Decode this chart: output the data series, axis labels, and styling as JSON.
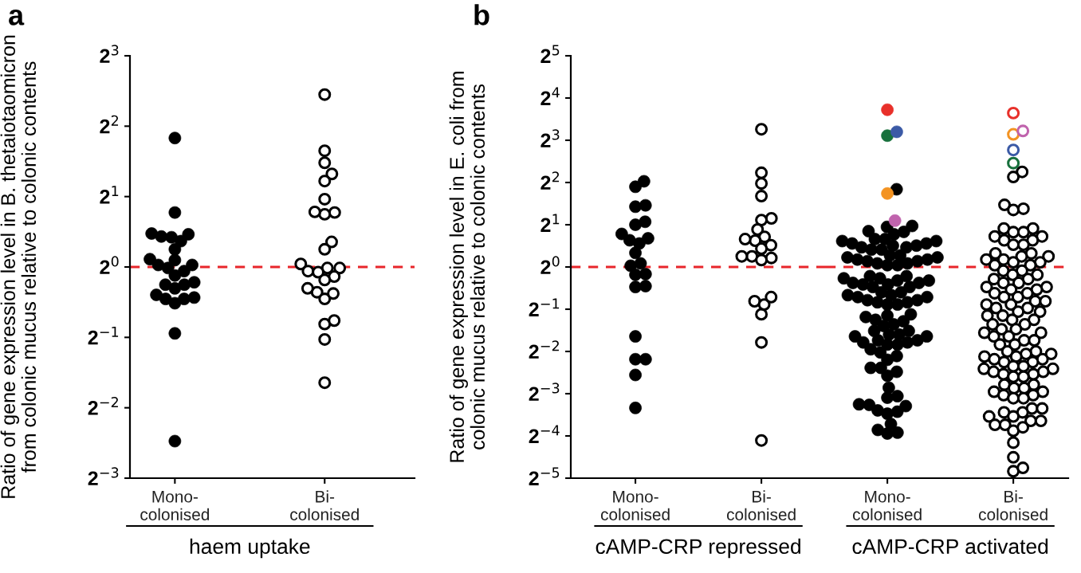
{
  "chart_data": [
    {
      "type": "scatter",
      "title": "a",
      "ylabel": "Ratio of gene expression level in B. thetaiotaomicron\nfrom colonic mucus relative to colonic contents",
      "categories": [
        "Mono-\ncolonised",
        "Bi-\ncolonised"
      ],
      "log": "y",
      "ylim": [
        0.125,
        8
      ],
      "yticks": [
        {
          "value": 0.125,
          "label": "2$^{−3}$"
        },
        {
          "value": 0.25,
          "label": "2$^{−2}$"
        },
        {
          "value": 0.5,
          "label": "2$^{−1}$"
        },
        {
          "value": 1,
          "label": "2$^{0}$"
        },
        {
          "value": 2,
          "label": "2$^{1}$"
        },
        {
          "value": 4,
          "label": "2$^{2}$"
        },
        {
          "value": 8,
          "label": "2$^{3}$"
        }
      ],
      "ref_lines": [
        {
          "axis": "y",
          "value": 1,
          "color": "#e8262b",
          "line_style": "dashed"
        }
      ],
      "annotations": [
        "haem uptake"
      ],
      "series": [
        {
          "color": "#000000",
          "marker": "circle",
          "x": [
            "Mono-\ncolonised",
            "Mono-\ncolonised",
            "Mono-\ncolonised",
            "Mono-\ncolonised",
            "Mono-\ncolonised",
            "Mono-\ncolonised",
            "Mono-\ncolonised",
            "Mono-\ncolonised",
            "Mono-\ncolonised",
            "Mono-\ncolonised",
            "Mono-\ncolonised",
            "Mono-\ncolonised",
            "Mono-\ncolonised",
            "Mono-\ncolonised",
            "Mono-\ncolonised",
            "Mono-\ncolonised",
            "Mono-\ncolonised",
            "Mono-\ncolonised",
            "Mono-\ncolonised",
            "Mono-\ncolonised",
            "Mono-\ncolonised",
            "Mono-\ncolonised",
            "Mono-\ncolonised",
            "Mono-\ncolonised",
            "Mono-\ncolonised",
            "Mono-\ncolonised"
          ],
          "values": [
            3.56,
            1.71,
            1.38,
            1.34,
            1.29,
            1.35,
            1.39,
            1.19,
            1.08,
            1.07,
            1.02,
            1.02,
            0.99,
            0.96,
            0.92,
            0.84,
            0.84,
            0.86,
            0.81,
            0.76,
            0.73,
            0.7,
            0.73,
            0.74,
            0.52,
            0.18
          ]
        },
        {
          "color": "#000000",
          "marker": "circle-open",
          "x": [
            "Bi-\ncolonised",
            "Bi-\ncolonised",
            "Bi-\ncolonised",
            "Bi-\ncolonised",
            "Bi-\ncolonised",
            "Bi-\ncolonised",
            "Bi-\ncolonised",
            "Bi-\ncolonised",
            "Bi-\ncolonised",
            "Bi-\ncolonised",
            "Bi-\ncolonised",
            "Bi-\ncolonised",
            "Bi-\ncolonised",
            "Bi-\ncolonised",
            "Bi-\ncolonised",
            "Bi-\ncolonised",
            "Bi-\ncolonised",
            "Bi-\ncolonised",
            "Bi-\ncolonised",
            "Bi-\ncolonised",
            "Bi-\ncolonised",
            "Bi-\ncolonised",
            "Bi-\ncolonised",
            "Bi-\ncolonised",
            "Bi-\ncolonised",
            "Bi-\ncolonised"
          ],
          "values": [
            5.46,
            3.14,
            2.79,
            2.5,
            2.33,
            1.95,
            1.71,
            1.68,
            1.72,
            1.28,
            1.19,
            0.99,
            1.03,
            0.96,
            0.99,
            0.95,
            0.91,
            0.88,
            0.78,
            0.73,
            0.77,
            0.81,
            0.57,
            0.59,
            0.49,
            0.32
          ]
        }
      ]
    },
    {
      "type": "scatter",
      "title": "b",
      "ylabel": "Ratio of gene expression level in E. coli from\ncolonic mucus relative to colonic contents",
      "categories": [
        "Mono-\ncolonised",
        "Bi-\ncolonised"
      ],
      "log": "y",
      "ylim": [
        0.03125,
        32
      ],
      "yticks": [
        {
          "value": 0.03125,
          "label": "2$^{−5}$"
        },
        {
          "value": 0.0625,
          "label": "2$^{−4}$"
        },
        {
          "value": 0.125,
          "label": "2$^{−3}$"
        },
        {
          "value": 0.25,
          "label": "2$^{−2}$"
        },
        {
          "value": 0.5,
          "label": "2$^{−1}$"
        },
        {
          "value": 1,
          "label": "2$^{0}$"
        },
        {
          "value": 2,
          "label": "2$^{1}$"
        },
        {
          "value": 4,
          "label": "2$^{2}$"
        },
        {
          "value": 8,
          "label": "2$^{3}$"
        },
        {
          "value": 16,
          "label": "2$^{4}$"
        },
        {
          "value": 32,
          "label": "2$^{5}$"
        }
      ],
      "ref_lines": [
        {
          "axis": "y",
          "value": 1,
          "color": "#e8262b",
          "line_style": "dashed"
        }
      ],
      "annotations": [
        "cAMP-CRP repressed"
      ],
      "series": [
        {
          "color": "#000000",
          "marker": "circle",
          "x": [
            "Mono-\ncolonised",
            "Mono-\ncolonised",
            "Mono-\ncolonised",
            "Mono-\ncolonised",
            "Mono-\ncolonised",
            "Mono-\ncolonised",
            "Mono-\ncolonised",
            "Mono-\ncolonised",
            "Mono-\ncolonised",
            "Mono-\ncolonised",
            "Mono-\ncolonised",
            "Mono-\ncolonised",
            "Mono-\ncolonised",
            "Mono-\ncolonised",
            "Mono-\ncolonised",
            "Mono-\ncolonised",
            "Mono-\ncolonised",
            "Mono-\ncolonised",
            "Mono-\ncolonised",
            "Mono-\ncolonised",
            "Mono-\ncolonised",
            "Mono-\ncolonised"
          ],
          "values": [
            4.08,
            3.73,
            2.75,
            2.69,
            2.1,
            2.0,
            1.72,
            1.55,
            1.47,
            1.6,
            1.26,
            1.02,
            1.06,
            0.89,
            0.88,
            0.73,
            0.72,
            0.32,
            0.22,
            0.22,
            0.17,
            0.099
          ]
        },
        {
          "color": "#000000",
          "marker": "circle-open",
          "x": [
            "Bi-\ncolonised",
            "Bi-\ncolonised",
            "Bi-\ncolonised",
            "Bi-\ncolonised",
            "Bi-\ncolonised",
            "Bi-\ncolonised",
            "Bi-\ncolonised",
            "Bi-\ncolonised",
            "Bi-\ncolonised",
            "Bi-\ncolonised",
            "Bi-\ncolonised",
            "Bi-\ncolonised",
            "Bi-\ncolonised",
            "Bi-\ncolonised",
            "Bi-\ncolonised",
            "Bi-\ncolonised",
            "Bi-\ncolonised",
            "Bi-\ncolonised",
            "Bi-\ncolonised",
            "Bi-\ncolonised",
            "Bi-\ncolonised",
            "Bi-\ncolonised"
          ],
          "values": [
            9.58,
            4.69,
            3.94,
            3.2,
            2.22,
            2.16,
            1.85,
            1.64,
            1.43,
            1.54,
            1.58,
            1.35,
            1.19,
            1.16,
            1.12,
            1.19,
            0.57,
            0.46,
            0.54,
            0.61,
            0.29,
            0.058
          ]
        }
      ]
    },
    {
      "type": "scatter",
      "categories": [
        "Mono-\ncolonised",
        "Bi-\ncolonised"
      ],
      "tick_labels": "x",
      "log": "y",
      "ylim": [
        0.03125,
        32
      ],
      "yticks": [
        {
          "value": 0.03125,
          "label": null
        },
        {
          "value": 0.0625,
          "label": null
        },
        {
          "value": 0.125,
          "label": null
        },
        {
          "value": 0.25,
          "label": null
        },
        {
          "value": 0.5,
          "label": null
        },
        {
          "value": 1,
          "label": null
        },
        {
          "value": 2,
          "label": null
        },
        {
          "value": 4,
          "label": null
        },
        {
          "value": 8,
          "label": null
        },
        {
          "value": 16,
          "label": null
        },
        {
          "value": 32,
          "label": null
        }
      ],
      "ref_lines": [
        {
          "axis": "y",
          "value": 1,
          "color": "#e8262b",
          "line_style": "dashed"
        }
      ],
      "annotations": [
        "cAMP-CRP activated"
      ],
      "series": [
        {
          "color": "#000000",
          "marker": "circle",
          "x": [
            "Mono-\ncolonised",
            "Mono-\ncolonised",
            "Mono-\ncolonised",
            "Mono-\ncolonised",
            "Mono-\ncolonised",
            "Mono-\ncolonised",
            "Mono-\ncolonised",
            "Mono-\ncolonised",
            "Mono-\ncolonised",
            "Mono-\ncolonised",
            "Mono-\ncolonised",
            "Mono-\ncolonised",
            "Mono-\ncolonised",
            "Mono-\ncolonised",
            "Mono-\ncolonised",
            "Mono-\ncolonised",
            "Mono-\ncolonised",
            "Mono-\ncolonised",
            "Mono-\ncolonised",
            "Mono-\ncolonised",
            "Mono-\ncolonised",
            "Mono-\ncolonised",
            "Mono-\ncolonised",
            "Mono-\ncolonised",
            "Mono-\ncolonised",
            "Mono-\ncolonised",
            "Mono-\ncolonised",
            "Mono-\ncolonised",
            "Mono-\ncolonised",
            "Mono-\ncolonised",
            "Mono-\ncolonised",
            "Mono-\ncolonised",
            "Mono-\ncolonised",
            "Mono-\ncolonised",
            "Mono-\ncolonised",
            "Mono-\ncolonised",
            "Mono-\ncolonised",
            "Mono-\ncolonised",
            "Mono-\ncolonised",
            "Mono-\ncolonised",
            "Mono-\ncolonised",
            "Mono-\ncolonised",
            "Mono-\ncolonised",
            "Mono-\ncolonised",
            "Mono-\ncolonised",
            "Mono-\ncolonised",
            "Mono-\ncolonised",
            "Mono-\ncolonised",
            "Mono-\ncolonised",
            "Mono-\ncolonised",
            "Mono-\ncolonised",
            "Mono-\ncolonised",
            "Mono-\ncolonised",
            "Mono-\ncolonised",
            "Mono-\ncolonised",
            "Mono-\ncolonised",
            "Mono-\ncolonised",
            "Mono-\ncolonised",
            "Mono-\ncolonised",
            "Mono-\ncolonised",
            "Mono-\ncolonised",
            "Mono-\ncolonised",
            "Mono-\ncolonised",
            "Mono-\ncolonised",
            "Mono-\ncolonised",
            "Mono-\ncolonised",
            "Mono-\ncolonised",
            "Mono-\ncolonised",
            "Mono-\ncolonised",
            "Mono-\ncolonised",
            "Mono-\ncolonised",
            "Mono-\ncolonised",
            "Mono-\ncolonised",
            "Mono-\ncolonised",
            "Mono-\ncolonised",
            "Mono-\ncolonised",
            "Mono-\ncolonised",
            "Mono-\ncolonised",
            "Mono-\ncolonised",
            "Mono-\ncolonised",
            "Mono-\ncolonised",
            "Mono-\ncolonised",
            "Mono-\ncolonised",
            "Mono-\ncolonised",
            "Mono-\ncolonised",
            "Mono-\ncolonised",
            "Mono-\ncolonised",
            "Mono-\ncolonised",
            "Mono-\ncolonised",
            "Mono-\ncolonised",
            "Mono-\ncolonised",
            "Mono-\ncolonised",
            "Mono-\ncolonised",
            "Mono-\ncolonised"
          ],
          "values": [
            3.58,
            1.96,
            1.8,
            1.71,
            1.78,
            1.93,
            1.58,
            1.58,
            1.53,
            1.53,
            1.47,
            1.47,
            1.42,
            1.42,
            1.38,
            1.38,
            1.33,
            1.33,
            1.21,
            1.21,
            1.17,
            1.17,
            1.13,
            1.13,
            1.1,
            1.1,
            1.06,
            1.06,
            1.03,
            1.03,
            0.86,
            0.86,
            0.83,
            0.83,
            0.8,
            0.8,
            0.77,
            0.77,
            0.75,
            0.75,
            0.72,
            0.72,
            0.66,
            0.66,
            0.63,
            0.63,
            0.61,
            0.61,
            0.58,
            0.58,
            0.56,
            0.56,
            0.54,
            0.54,
            0.45,
            0.44,
            0.41,
            0.38,
            0.39,
            0.42,
            0.46,
            0.35,
            0.35,
            0.33,
            0.33,
            0.32,
            0.32,
            0.3,
            0.3,
            0.29,
            0.29,
            0.28,
            0.28,
            0.259,
            0.232,
            0.179,
            0.191,
            0.191,
            0.168,
            0.218,
            0.246,
            0.138,
            0.12,
            0.117,
            0.105,
            0.102,
            0.093,
            0.09,
            0.095,
            0.104,
            0.069,
            0.065,
            0.066,
            0.076
          ]
        },
        {
          "marker": "circle",
          "colors": [
            "#e8302a",
            "#17703c",
            "#3b5aa6",
            "#f39322",
            "#c063ad"
          ],
          "x": [
            "Mono-\ncolonised",
            "Mono-\ncolonised",
            "Mono-\ncolonised",
            "Mono-\ncolonised",
            "Mono-\ncolonised"
          ],
          "values": [
            13.2,
            8.63,
            9.19,
            3.34,
            2.14
          ]
        },
        {
          "color": "#000000",
          "marker": "circle-open",
          "x": [
            "Bi-\ncolonised",
            "Bi-\ncolonised",
            "Bi-\ncolonised",
            "Bi-\ncolonised",
            "Bi-\ncolonised",
            "Bi-\ncolonised",
            "Bi-\ncolonised",
            "Bi-\ncolonised",
            "Bi-\ncolonised",
            "Bi-\ncolonised",
            "Bi-\ncolonised",
            "Bi-\ncolonised",
            "Bi-\ncolonised",
            "Bi-\ncolonised",
            "Bi-\ncolonised",
            "Bi-\ncolonised",
            "Bi-\ncolonised",
            "Bi-\ncolonised",
            "Bi-\ncolonised",
            "Bi-\ncolonised",
            "Bi-\ncolonised",
            "Bi-\ncolonised",
            "Bi-\ncolonised",
            "Bi-\ncolonised",
            "Bi-\ncolonised",
            "Bi-\ncolonised",
            "Bi-\ncolonised",
            "Bi-\ncolonised",
            "Bi-\ncolonised",
            "Bi-\ncolonised",
            "Bi-\ncolonised",
            "Bi-\ncolonised",
            "Bi-\ncolonised",
            "Bi-\ncolonised",
            "Bi-\ncolonised",
            "Bi-\ncolonised",
            "Bi-\ncolonised",
            "Bi-\ncolonised",
            "Bi-\ncolonised",
            "Bi-\ncolonised",
            "Bi-\ncolonised",
            "Bi-\ncolonised",
            "Bi-\ncolonised",
            "Bi-\ncolonised",
            "Bi-\ncolonised",
            "Bi-\ncolonised",
            "Bi-\ncolonised",
            "Bi-\ncolonised",
            "Bi-\ncolonised",
            "Bi-\ncolonised",
            "Bi-\ncolonised",
            "Bi-\ncolonised",
            "Bi-\ncolonised",
            "Bi-\ncolonised",
            "Bi-\ncolonised",
            "Bi-\ncolonised",
            "Bi-\ncolonised",
            "Bi-\ncolonised",
            "Bi-\ncolonised",
            "Bi-\ncolonised",
            "Bi-\ncolonised",
            "Bi-\ncolonised",
            "Bi-\ncolonised",
            "Bi-\ncolonised",
            "Bi-\ncolonised",
            "Bi-\ncolonised",
            "Bi-\ncolonised",
            "Bi-\ncolonised",
            "Bi-\ncolonised",
            "Bi-\ncolonised",
            "Bi-\ncolonised",
            "Bi-\ncolonised",
            "Bi-\ncolonised",
            "Bi-\ncolonised",
            "Bi-\ncolonised",
            "Bi-\ncolonised",
            "Bi-\ncolonised",
            "Bi-\ncolonised",
            "Bi-\ncolonised",
            "Bi-\ncolonised",
            "Bi-\ncolonised",
            "Bi-\ncolonised",
            "Bi-\ncolonised",
            "Bi-\ncolonised",
            "Bi-\ncolonised",
            "Bi-\ncolonised",
            "Bi-\ncolonised",
            "Bi-\ncolonised",
            "Bi-\ncolonised",
            "Bi-\ncolonised",
            "Bi-\ncolonised",
            "Bi-\ncolonised",
            "Bi-\ncolonised",
            "Bi-\ncolonised",
            "Bi-\ncolonised",
            "Bi-\ncolonised",
            "Bi-\ncolonised",
            "Bi-\ncolonised",
            "Bi-\ncolonised",
            "Bi-\ncolonised",
            "Bi-\ncolonised",
            "Bi-\ncolonised",
            "Bi-\ncolonised",
            "Bi-\ncolonised",
            "Bi-\ncolonised",
            "Bi-\ncolonised",
            "Bi-\ncolonised",
            "Bi-\ncolonised",
            "Bi-\ncolonised",
            "Bi-\ncolonised",
            "Bi-\ncolonised"
          ],
          "values": [
            4.76,
            4.38,
            2.77,
            2.55,
            2.6,
            1.88,
            1.88,
            1.77,
            1.77,
            1.65,
            1.65,
            1.55,
            1.55,
            1.44,
            1.44,
            1.25,
            1.25,
            1.19,
            1.19,
            1.13,
            1.13,
            1.08,
            1.08,
            1.03,
            1.03,
            0.94,
            0.94,
            0.88,
            0.88,
            0.82,
            0.82,
            0.77,
            0.77,
            0.72,
            0.72,
            0.69,
            0.69,
            0.65,
            0.65,
            0.61,
            0.61,
            0.57,
            0.57,
            0.54,
            0.54,
            0.51,
            0.51,
            0.48,
            0.48,
            0.45,
            0.45,
            0.42,
            0.42,
            0.39,
            0.39,
            0.36,
            0.36,
            0.34,
            0.34,
            0.32,
            0.32,
            0.3,
            0.3,
            0.28,
            0.28,
            0.25,
            0.25,
            0.24,
            0.24,
            0.23,
            0.23,
            0.22,
            0.22,
            0.21,
            0.21,
            0.196,
            0.196,
            0.188,
            0.188,
            0.179,
            0.179,
            0.172,
            0.172,
            0.165,
            0.165,
            0.145,
            0.145,
            0.137,
            0.137,
            0.129,
            0.129,
            0.122,
            0.122,
            0.116,
            0.116,
            0.098,
            0.098,
            0.092,
            0.092,
            0.086,
            0.086,
            0.08,
            0.08,
            0.075,
            0.075,
            0.068,
            0.072,
            0.056,
            0.044,
            0.035,
            0.037
          ]
        },
        {
          "marker": "circle-open",
          "colors": [
            "#e8302a",
            "#f39322",
            "#c063ad",
            "#3b5aa6",
            "#17703c"
          ],
          "x": [
            "Bi-\ncolonised",
            "Bi-\ncolonised",
            "Bi-\ncolonised",
            "Bi-\ncolonised",
            "Bi-\ncolonised"
          ],
          "values": [
            12.5,
            8.82,
            9.32,
            6.82,
            5.5
          ]
        }
      ]
    }
  ]
}
